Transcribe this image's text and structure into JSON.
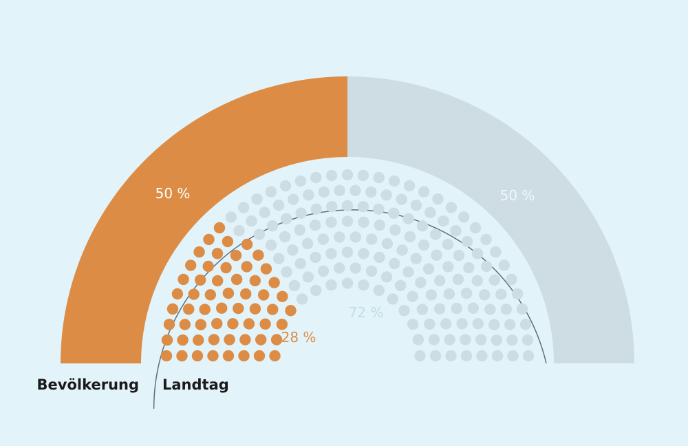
{
  "chart_data": {
    "type": "parliament",
    "series": [
      {
        "name": "Bevölkerung",
        "values": [
          50,
          50
        ],
        "labels": [
          "50 %",
          "50 %"
        ]
      },
      {
        "name": "Landtag",
        "values": [
          28,
          72
        ],
        "labels": [
          "28 %",
          "72 %"
        ]
      }
    ],
    "colors": {
      "highlight": "#dc8c45",
      "rest": "#cddde3",
      "rest_label_outer": "#f1f7f9",
      "rest_label_inner": "#c3dbe4",
      "background": "#e2f3fa",
      "guide_line": "#5d6f80"
    }
  }
}
